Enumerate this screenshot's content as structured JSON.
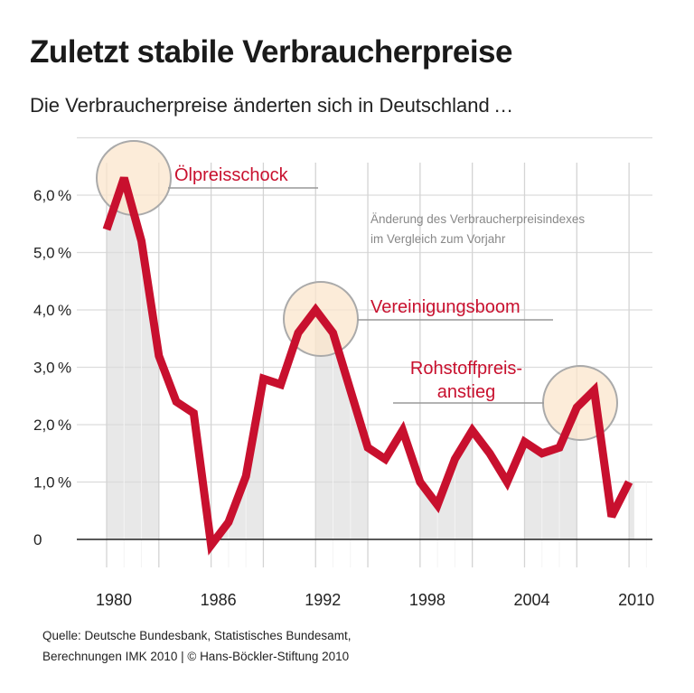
{
  "title": "Zuletzt stabile Verbraucherpreise",
  "subtitle": "Die Verbraucherpreise änderten sich in Deutschland …",
  "source_lines": [
    "Quelle: Deutsche Bundesbank, Statistisches Bundesamt,",
    "Berechnungen IMK 2010 | © Hans-Böckler-Stiftung 2010"
  ],
  "colors": {
    "line": "#c8102e",
    "annotation": "#c8102e",
    "shade": "#e8e8e8",
    "highlight": "#fbe6cc"
  },
  "chart_data": {
    "type": "line",
    "title": "Zuletzt stabile Verbraucherpreise",
    "note": [
      "Änderung des Verbraucherpreisindexes",
      "im Vergleich zum Vorjahr"
    ],
    "xlim": [
      1980,
      2010
    ],
    "ylim": [
      0,
      6
    ],
    "x_ticks": [
      1980,
      1986,
      1992,
      1998,
      2004,
      2010
    ],
    "x_tick_labels": [
      "1980",
      "1986",
      "1992",
      "1998",
      "2004",
      "2010"
    ],
    "y_ticks": [
      0,
      1,
      2,
      3,
      4,
      5,
      6
    ],
    "y_tick_labels": [
      "0",
      "1,0 %",
      "2,0 %",
      "3,0 %",
      "4,0 %",
      "5,0 %",
      "6,0 %"
    ],
    "grid": true,
    "x": [
      1980,
      1981,
      1982,
      1983,
      1984,
      1985,
      1986,
      1987,
      1988,
      1989,
      1990,
      1991,
      1992,
      1993,
      1994,
      1995,
      1996,
      1997,
      1998,
      1999,
      2000,
      2001,
      2002,
      2003,
      2004,
      2005,
      2006,
      2007,
      2008,
      2009,
      2010
    ],
    "values": [
      5.4,
      6.3,
      5.2,
      3.2,
      2.4,
      2.2,
      -0.1,
      0.3,
      1.1,
      2.8,
      2.7,
      3.6,
      4.0,
      3.6,
      2.6,
      1.6,
      1.4,
      1.9,
      1.0,
      0.6,
      1.4,
      1.9,
      1.5,
      1.0,
      1.7,
      1.5,
      1.6,
      2.3,
      2.6,
      0.4,
      1.0
    ],
    "shaded_periods": [
      [
        1980,
        1983
      ],
      [
        1986,
        1989
      ],
      [
        1992,
        1995
      ],
      [
        1998,
        2001
      ],
      [
        2004,
        2007
      ],
      [
        2010,
        2011
      ]
    ],
    "annotations": [
      {
        "text": [
          "Ölpreisschock"
        ],
        "x": 1981,
        "y": 6.3
      },
      {
        "text": [
          "Vereinigungsboom"
        ],
        "x": 1992,
        "y": 4.0
      },
      {
        "text": [
          "Rohstoffpreis-",
          "anstieg"
        ],
        "x": 2007.5,
        "y": 2.4
      }
    ]
  }
}
